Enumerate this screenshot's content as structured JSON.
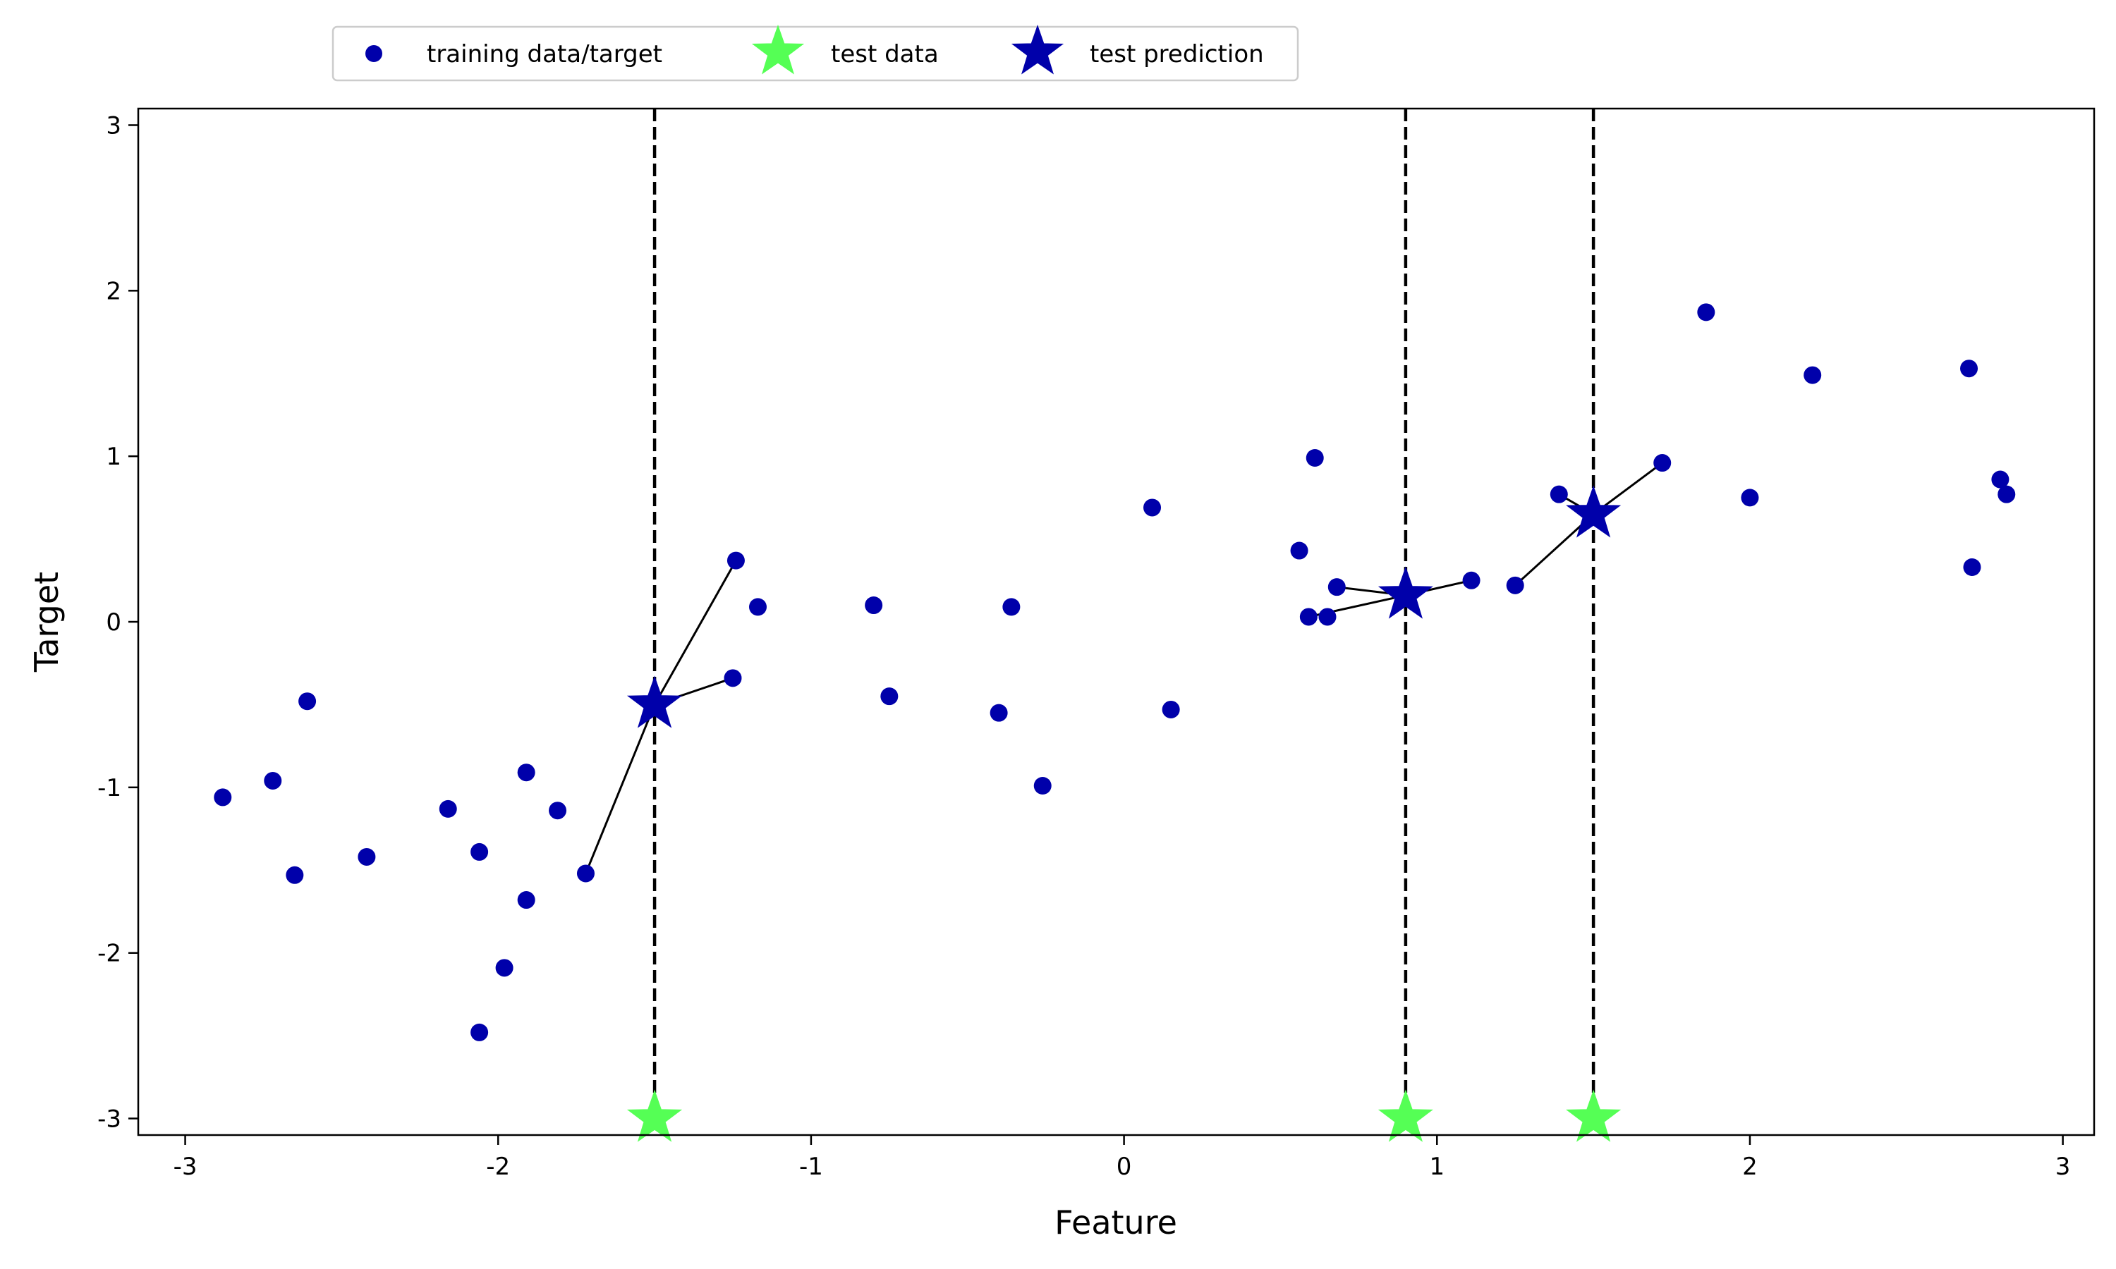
{
  "chart_data": {
    "type": "scatter",
    "xlabel": "Feature",
    "ylabel": "Target",
    "xlim": [
      -3.15,
      3.1
    ],
    "ylim": [
      -3.1,
      3.1
    ],
    "xticks": [
      -3,
      -2,
      -1,
      0,
      1,
      2,
      3
    ],
    "yticks": [
      -3,
      -2,
      -1,
      0,
      1,
      2,
      3
    ],
    "grid": false,
    "legend_position": "top, above plot",
    "colors": {
      "training": "#0000aa",
      "test_data": "#55ff55",
      "test_prediction": "#0000aa"
    },
    "legend": [
      {
        "key": "training",
        "label": "training data/target"
      },
      {
        "key": "test_data",
        "label": "test data"
      },
      {
        "key": "test_prediction",
        "label": "test prediction"
      }
    ],
    "training": {
      "x": [
        -2.88,
        -2.72,
        -2.65,
        -2.61,
        -2.42,
        -2.16,
        -2.06,
        -2.06,
        -1.98,
        -1.91,
        -1.91,
        -1.81,
        -1.72,
        -1.25,
        -1.24,
        -1.17,
        -0.8,
        -0.75,
        -0.4,
        -0.36,
        -0.26,
        0.09,
        0.15,
        0.56,
        0.59,
        0.61,
        0.65,
        0.68,
        1.11,
        1.25,
        1.39,
        1.72,
        1.86,
        2.0,
        2.2,
        2.7,
        2.71,
        2.8,
        2.82
      ],
      "y": [
        -1.06,
        -0.96,
        -1.53,
        -0.48,
        -1.42,
        -1.13,
        -1.39,
        -2.48,
        -2.09,
        -1.68,
        -0.91,
        -1.14,
        -1.52,
        -0.34,
        0.37,
        0.09,
        0.1,
        -0.45,
        -0.55,
        0.09,
        -0.99,
        0.69,
        -0.53,
        0.43,
        0.03,
        0.99,
        0.03,
        0.21,
        0.25,
        0.22,
        0.77,
        0.96,
        1.87,
        0.75,
        1.49,
        1.53,
        0.33,
        0.86,
        0.77
      ]
    },
    "test_data": {
      "x": [
        -1.5,
        0.9,
        1.5
      ],
      "y": [
        -3.0,
        -3.0,
        -3.0
      ]
    },
    "test_prediction": {
      "x": [
        -1.5,
        0.9,
        1.5
      ],
      "y": [
        -0.5,
        0.16,
        0.65
      ]
    },
    "neighbor_links": [
      {
        "test": 0,
        "neighbors": [
          [
            -1.25,
            -0.34
          ],
          [
            -1.24,
            0.37
          ],
          [
            -1.72,
            -1.52
          ]
        ]
      },
      {
        "test": 1,
        "neighbors": [
          [
            0.59,
            0.03
          ],
          [
            0.68,
            0.21
          ],
          [
            1.11,
            0.25
          ]
        ]
      },
      {
        "test": 2,
        "neighbors": [
          [
            1.25,
            0.22
          ],
          [
            1.39,
            0.77
          ],
          [
            1.72,
            0.96
          ]
        ]
      }
    ]
  }
}
